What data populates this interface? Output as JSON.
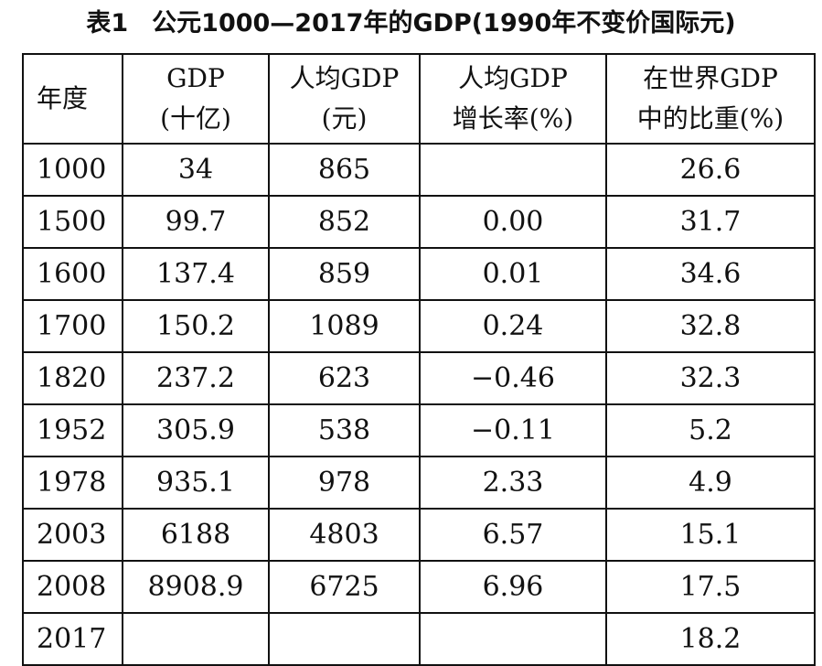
{
  "title": {
    "number": "表1",
    "text": "公元1000—2017年的GDP(1990年不变价国际元)"
  },
  "table": {
    "headers": [
      {
        "line1": "年度",
        "line2": ""
      },
      {
        "line1": "GDP",
        "line2": "(十亿)"
      },
      {
        "line1": "人均GDP",
        "line2": "(元)"
      },
      {
        "line1": "人均GDP",
        "line2": "增长率(%)"
      },
      {
        "line1": "在世界GDP",
        "line2": "中的比重(%)"
      }
    ],
    "rows": [
      [
        "1000",
        "34",
        "865",
        "",
        "26.6"
      ],
      [
        "1500",
        "99.7",
        "852",
        "0.00",
        "31.7"
      ],
      [
        "1600",
        "137.4",
        "859",
        "0.01",
        "34.6"
      ],
      [
        "1700",
        "150.2",
        "1089",
        "0.24",
        "32.8"
      ],
      [
        "1820",
        "237.2",
        "623",
        "−0.46",
        "32.3"
      ],
      [
        "1952",
        "305.9",
        "538",
        "−0.11",
        "5.2"
      ],
      [
        "1978",
        "935.1",
        "978",
        "2.33",
        "4.9"
      ],
      [
        "2003",
        "6188",
        "4803",
        "6.57",
        "15.1"
      ],
      [
        "2008",
        "8908.9",
        "6725",
        "6.96",
        "17.5"
      ],
      [
        "2017",
        "",
        "",
        "",
        "18.2"
      ]
    ]
  }
}
